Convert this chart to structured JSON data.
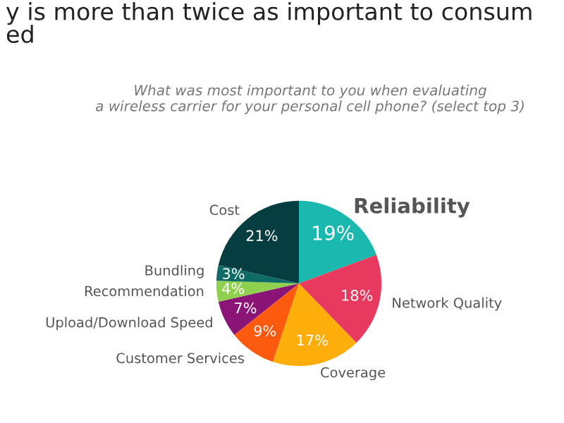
{
  "chart_data": {
    "type": "pie",
    "title": "y is more than twice as important to consum\ned",
    "subtitle": "What was most important to you when evaluating\na wireless carrier for your personal cell phone? (select top 3)",
    "categories": [
      "Reliability",
      "Network Quality",
      "Coverage",
      "Customer Services",
      "Upload/Download Speed",
      "Recommendation",
      "Bundling",
      "Cost"
    ],
    "values": [
      19,
      18,
      17,
      9,
      7,
      4,
      3,
      21
    ],
    "colors": [
      "#1bb8b0",
      "#e8395f",
      "#fdae0a",
      "#fc5a0e",
      "#8b1576",
      "#8fd14f",
      "#0e6b66",
      "#063d40"
    ],
    "value_labels": [
      "19%",
      "18%",
      "17%",
      "9%",
      "7%",
      "4%",
      "3%",
      "21%"
    ]
  }
}
